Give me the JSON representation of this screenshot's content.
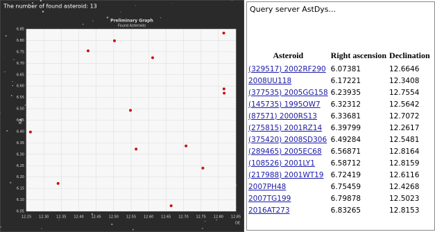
{
  "status": "The number of found asteroid: 13",
  "chart_data": {
    "type": "scatter",
    "title": "Preliminary Graph",
    "subtitle": "Found Asteroids",
    "xlabel": "DE",
    "ylabel": "RA",
    "color": "#cc1111",
    "grid": true,
    "x": [
      12.6646,
      12.3408,
      12.7554,
      12.5642,
      12.7072,
      12.2617,
      12.5481,
      12.8164,
      12.8159,
      12.6116,
      12.4268,
      12.5023,
      12.8153
    ],
    "y": [
      6.07381,
      6.17221,
      6.23935,
      6.32312,
      6.33681,
      6.39799,
      6.49284,
      6.56871,
      6.58712,
      6.72419,
      6.75459,
      6.79878,
      6.83265
    ],
    "xlim": [
      12.25,
      12.85
    ],
    "xticks": [
      12.25,
      {
        "value": 12.3,
        "label": "12.30"
      },
      12.35,
      {
        "value": 12.4,
        "label": "12.40"
      },
      12.45,
      {
        "value": 12.5,
        "label": "12.50"
      },
      12.55,
      {
        "value": 12.6,
        "label": "12.60"
      },
      12.65,
      {
        "value": 12.7,
        "label": "12.70"
      },
      12.75,
      {
        "value": 12.8,
        "label": "12.80"
      },
      12.85
    ],
    "ylim": [
      6.05,
      6.85
    ],
    "yticks": [
      6.05,
      {
        "value": 6.1,
        "label": "6.10"
      },
      6.15,
      {
        "value": 6.2,
        "label": "6.20"
      },
      6.25,
      {
        "value": 6.3,
        "label": "6.30"
      },
      6.35,
      {
        "value": 6.4,
        "label": "6.40"
      },
      6.45,
      {
        "value": 6.5,
        "label": "6.50"
      },
      6.55,
      {
        "value": 6.6,
        "label": "6.60"
      },
      6.65,
      {
        "value": 6.7,
        "label": "6.70"
      },
      6.75,
      {
        "value": 6.8,
        "label": "6.80"
      },
      6.85
    ]
  },
  "panel": {
    "status": "Query server AstDys...",
    "table": {
      "columns": [
        "Asteroid",
        "Right ascension",
        "Declination"
      ],
      "rows": [
        [
          "(329517) 2002RF290",
          "6.07381",
          "12.6646"
        ],
        [
          "2008UU118",
          "6.17221",
          "12.3408"
        ],
        [
          "(377535) 2005GG158",
          "6.23935",
          "12.7554"
        ],
        [
          "(145735) 1995OW7",
          "6.32312",
          "12.5642"
        ],
        [
          "(87571) 2000RS13",
          "6.33681",
          "12.7072"
        ],
        [
          "(275815) 2001RZ14",
          "6.39799",
          "12.2617"
        ],
        [
          "(375420) 2008SD306",
          "6.49284",
          "12.5481"
        ],
        [
          "(289465) 2005EC68",
          "6.56871",
          "12.8164"
        ],
        [
          "(108526) 2001LY1",
          "6.58712",
          "12.8159"
        ],
        [
          "(217988) 2001WT19",
          "6.72419",
          "12.6116"
        ],
        [
          "2007PH48",
          "6.75459",
          "12.4268"
        ],
        [
          "2007TG199",
          "6.79878",
          "12.5023"
        ],
        [
          "2016AT273",
          "6.83265",
          "12.8153"
        ]
      ]
    }
  }
}
